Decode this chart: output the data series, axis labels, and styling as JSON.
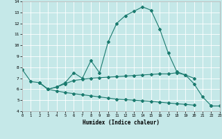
{
  "xlabel": "Humidex (Indice chaleur)",
  "background_color": "#c5e8e8",
  "grid_color": "#ffffff",
  "line_color": "#1a7a6e",
  "x_values": [
    0,
    1,
    2,
    3,
    4,
    5,
    6,
    7,
    8,
    9,
    10,
    11,
    12,
    13,
    14,
    15,
    16,
    17,
    18,
    19,
    20,
    21,
    22,
    23
  ],
  "line1_y": [
    7.8,
    6.7,
    6.6,
    6.0,
    6.2,
    6.6,
    7.5,
    7.0,
    8.6,
    7.5,
    10.3,
    12.0,
    12.7,
    13.1,
    13.5,
    13.2,
    11.5,
    9.3,
    7.6,
    7.3,
    6.5,
    5.3,
    4.5,
    null
  ],
  "line2_y": [
    null,
    null,
    6.6,
    6.0,
    6.2,
    6.5,
    6.8,
    6.9,
    7.0,
    7.05,
    7.1,
    7.15,
    7.2,
    7.25,
    7.3,
    7.35,
    7.4,
    7.4,
    7.5,
    7.3,
    7.0,
    null,
    null,
    null
  ],
  "line3_y": [
    null,
    null,
    6.6,
    6.0,
    5.85,
    5.7,
    5.6,
    5.5,
    5.4,
    5.3,
    5.2,
    5.1,
    5.05,
    5.0,
    4.95,
    4.9,
    4.82,
    4.75,
    4.68,
    4.62,
    4.55,
    null,
    null,
    null
  ],
  "line4_y": [
    null,
    null,
    null,
    null,
    null,
    null,
    null,
    null,
    null,
    null,
    null,
    null,
    null,
    null,
    null,
    null,
    null,
    null,
    null,
    null,
    null,
    null,
    4.5,
    4.5
  ],
  "ylim": [
    4,
    14
  ],
  "xlim": [
    0,
    23
  ],
  "yticks": [
    4,
    5,
    6,
    7,
    8,
    9,
    10,
    11,
    12,
    13,
    14
  ],
  "xticks": [
    0,
    1,
    2,
    3,
    4,
    5,
    6,
    7,
    8,
    9,
    10,
    11,
    12,
    13,
    14,
    15,
    16,
    17,
    18,
    19,
    20,
    21,
    22,
    23
  ]
}
